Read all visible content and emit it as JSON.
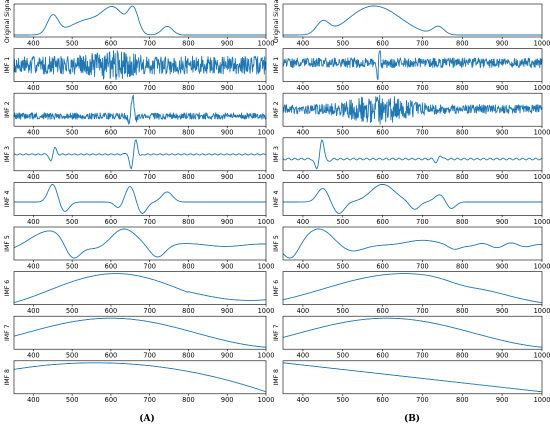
{
  "chart_data": {
    "type": "line",
    "color": "#1f77b4",
    "x_ticks": [
      "400",
      "500",
      "600",
      "700",
      "800",
      "900",
      "1000"
    ],
    "xlim": [
      350,
      1000
    ],
    "grid": false,
    "row_labels": [
      "Original Signal",
      "IMF 1",
      "IMF 2",
      "IMF 3",
      "IMF 4",
      "IMF 5",
      "IMF 6",
      "IMF 7",
      "IMF 8"
    ],
    "panels": [
      {
        "id": "A",
        "caption": "(A)"
      },
      {
        "id": "B",
        "caption": "(B)"
      }
    ]
  }
}
